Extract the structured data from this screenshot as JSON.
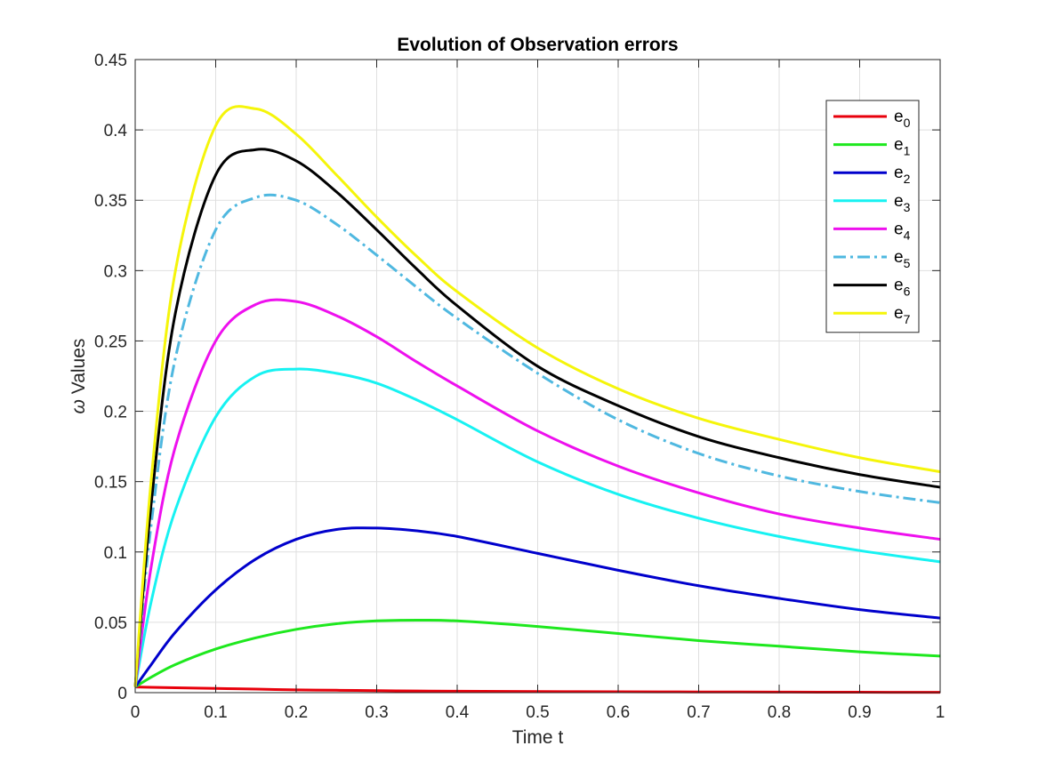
{
  "chart_data": {
    "type": "line",
    "title": "Evolution of Observation errors",
    "xlabel": "Time t",
    "ylabel_symbol": "ω",
    "ylabel_text": " Values",
    "xlim": [
      0,
      1
    ],
    "ylim": [
      0,
      0.45
    ],
    "xticks": [
      0,
      0.1,
      0.2,
      0.3,
      0.4,
      0.5,
      0.6,
      0.7,
      0.8,
      0.9,
      1
    ],
    "xtick_labels": [
      "0",
      "0.1",
      "0.2",
      "0.3",
      "0.4",
      "0.5",
      "0.6",
      "0.7",
      "0.8",
      "0.9",
      "1"
    ],
    "yticks": [
      0,
      0.05,
      0.1,
      0.15,
      0.2,
      0.25,
      0.3,
      0.35,
      0.4,
      0.45
    ],
    "ytick_labels": [
      "0",
      "0.05",
      "0.1",
      "0.15",
      "0.2",
      "0.25",
      "0.3",
      "0.35",
      "0.4",
      "0.45"
    ],
    "grid": true,
    "legend_position": "top-right",
    "x": [
      0,
      0.02,
      0.05,
      0.1,
      0.15,
      0.2,
      0.25,
      0.3,
      0.35,
      0.4,
      0.5,
      0.6,
      0.7,
      0.8,
      0.9,
      1.0
    ],
    "series": [
      {
        "name": "e",
        "sub": "0",
        "color": "#e8000b",
        "dash": "solid",
        "values": [
          0.004,
          0.0038,
          0.0035,
          0.003,
          0.0025,
          0.002,
          0.0017,
          0.0014,
          0.0012,
          0.001,
          0.0008,
          0.0006,
          0.0005,
          0.0004,
          0.0003,
          0.0002
        ]
      },
      {
        "name": "e",
        "sub": "1",
        "color": "#1ee81e",
        "dash": "solid",
        "values": [
          0.004,
          0.011,
          0.02,
          0.031,
          0.039,
          0.045,
          0.049,
          0.051,
          0.0515,
          0.051,
          0.047,
          0.042,
          0.037,
          0.033,
          0.029,
          0.026
        ]
      },
      {
        "name": "e",
        "sub": "2",
        "color": "#0000cc",
        "dash": "solid",
        "values": [
          0.004,
          0.02,
          0.043,
          0.073,
          0.095,
          0.109,
          0.116,
          0.117,
          0.115,
          0.111,
          0.099,
          0.087,
          0.076,
          0.067,
          0.059,
          0.053
        ]
      },
      {
        "name": "e",
        "sub": "3",
        "color": "#17f2f2",
        "dash": "solid",
        "values": [
          0.004,
          0.065,
          0.13,
          0.196,
          0.225,
          0.23,
          0.227,
          0.22,
          0.208,
          0.194,
          0.164,
          0.141,
          0.124,
          0.111,
          0.101,
          0.093
        ]
      },
      {
        "name": "e",
        "sub": "4",
        "color": "#ee10ee",
        "dash": "solid",
        "values": [
          0.004,
          0.09,
          0.175,
          0.25,
          0.276,
          0.278,
          0.268,
          0.253,
          0.235,
          0.218,
          0.186,
          0.161,
          0.142,
          0.127,
          0.117,
          0.109
        ]
      },
      {
        "name": "e",
        "sub": "5",
        "color": "#4fb8e0",
        "dash": "dashdot",
        "values": [
          0.004,
          0.12,
          0.238,
          0.329,
          0.352,
          0.35,
          0.333,
          0.311,
          0.288,
          0.266,
          0.227,
          0.194,
          0.17,
          0.154,
          0.143,
          0.135
        ]
      },
      {
        "name": "e",
        "sub": "6",
        "color": "#000000",
        "dash": "solid",
        "values": [
          0.004,
          0.135,
          0.27,
          0.368,
          0.386,
          0.378,
          0.356,
          0.329,
          0.301,
          0.275,
          0.232,
          0.204,
          0.182,
          0.167,
          0.155,
          0.146
        ]
      },
      {
        "name": "e",
        "sub": "7",
        "color": "#f5f50a",
        "dash": "solid",
        "values": [
          0.004,
          0.152,
          0.3,
          0.403,
          0.415,
          0.397,
          0.368,
          0.338,
          0.31,
          0.285,
          0.245,
          0.216,
          0.195,
          0.18,
          0.167,
          0.157
        ]
      }
    ]
  }
}
